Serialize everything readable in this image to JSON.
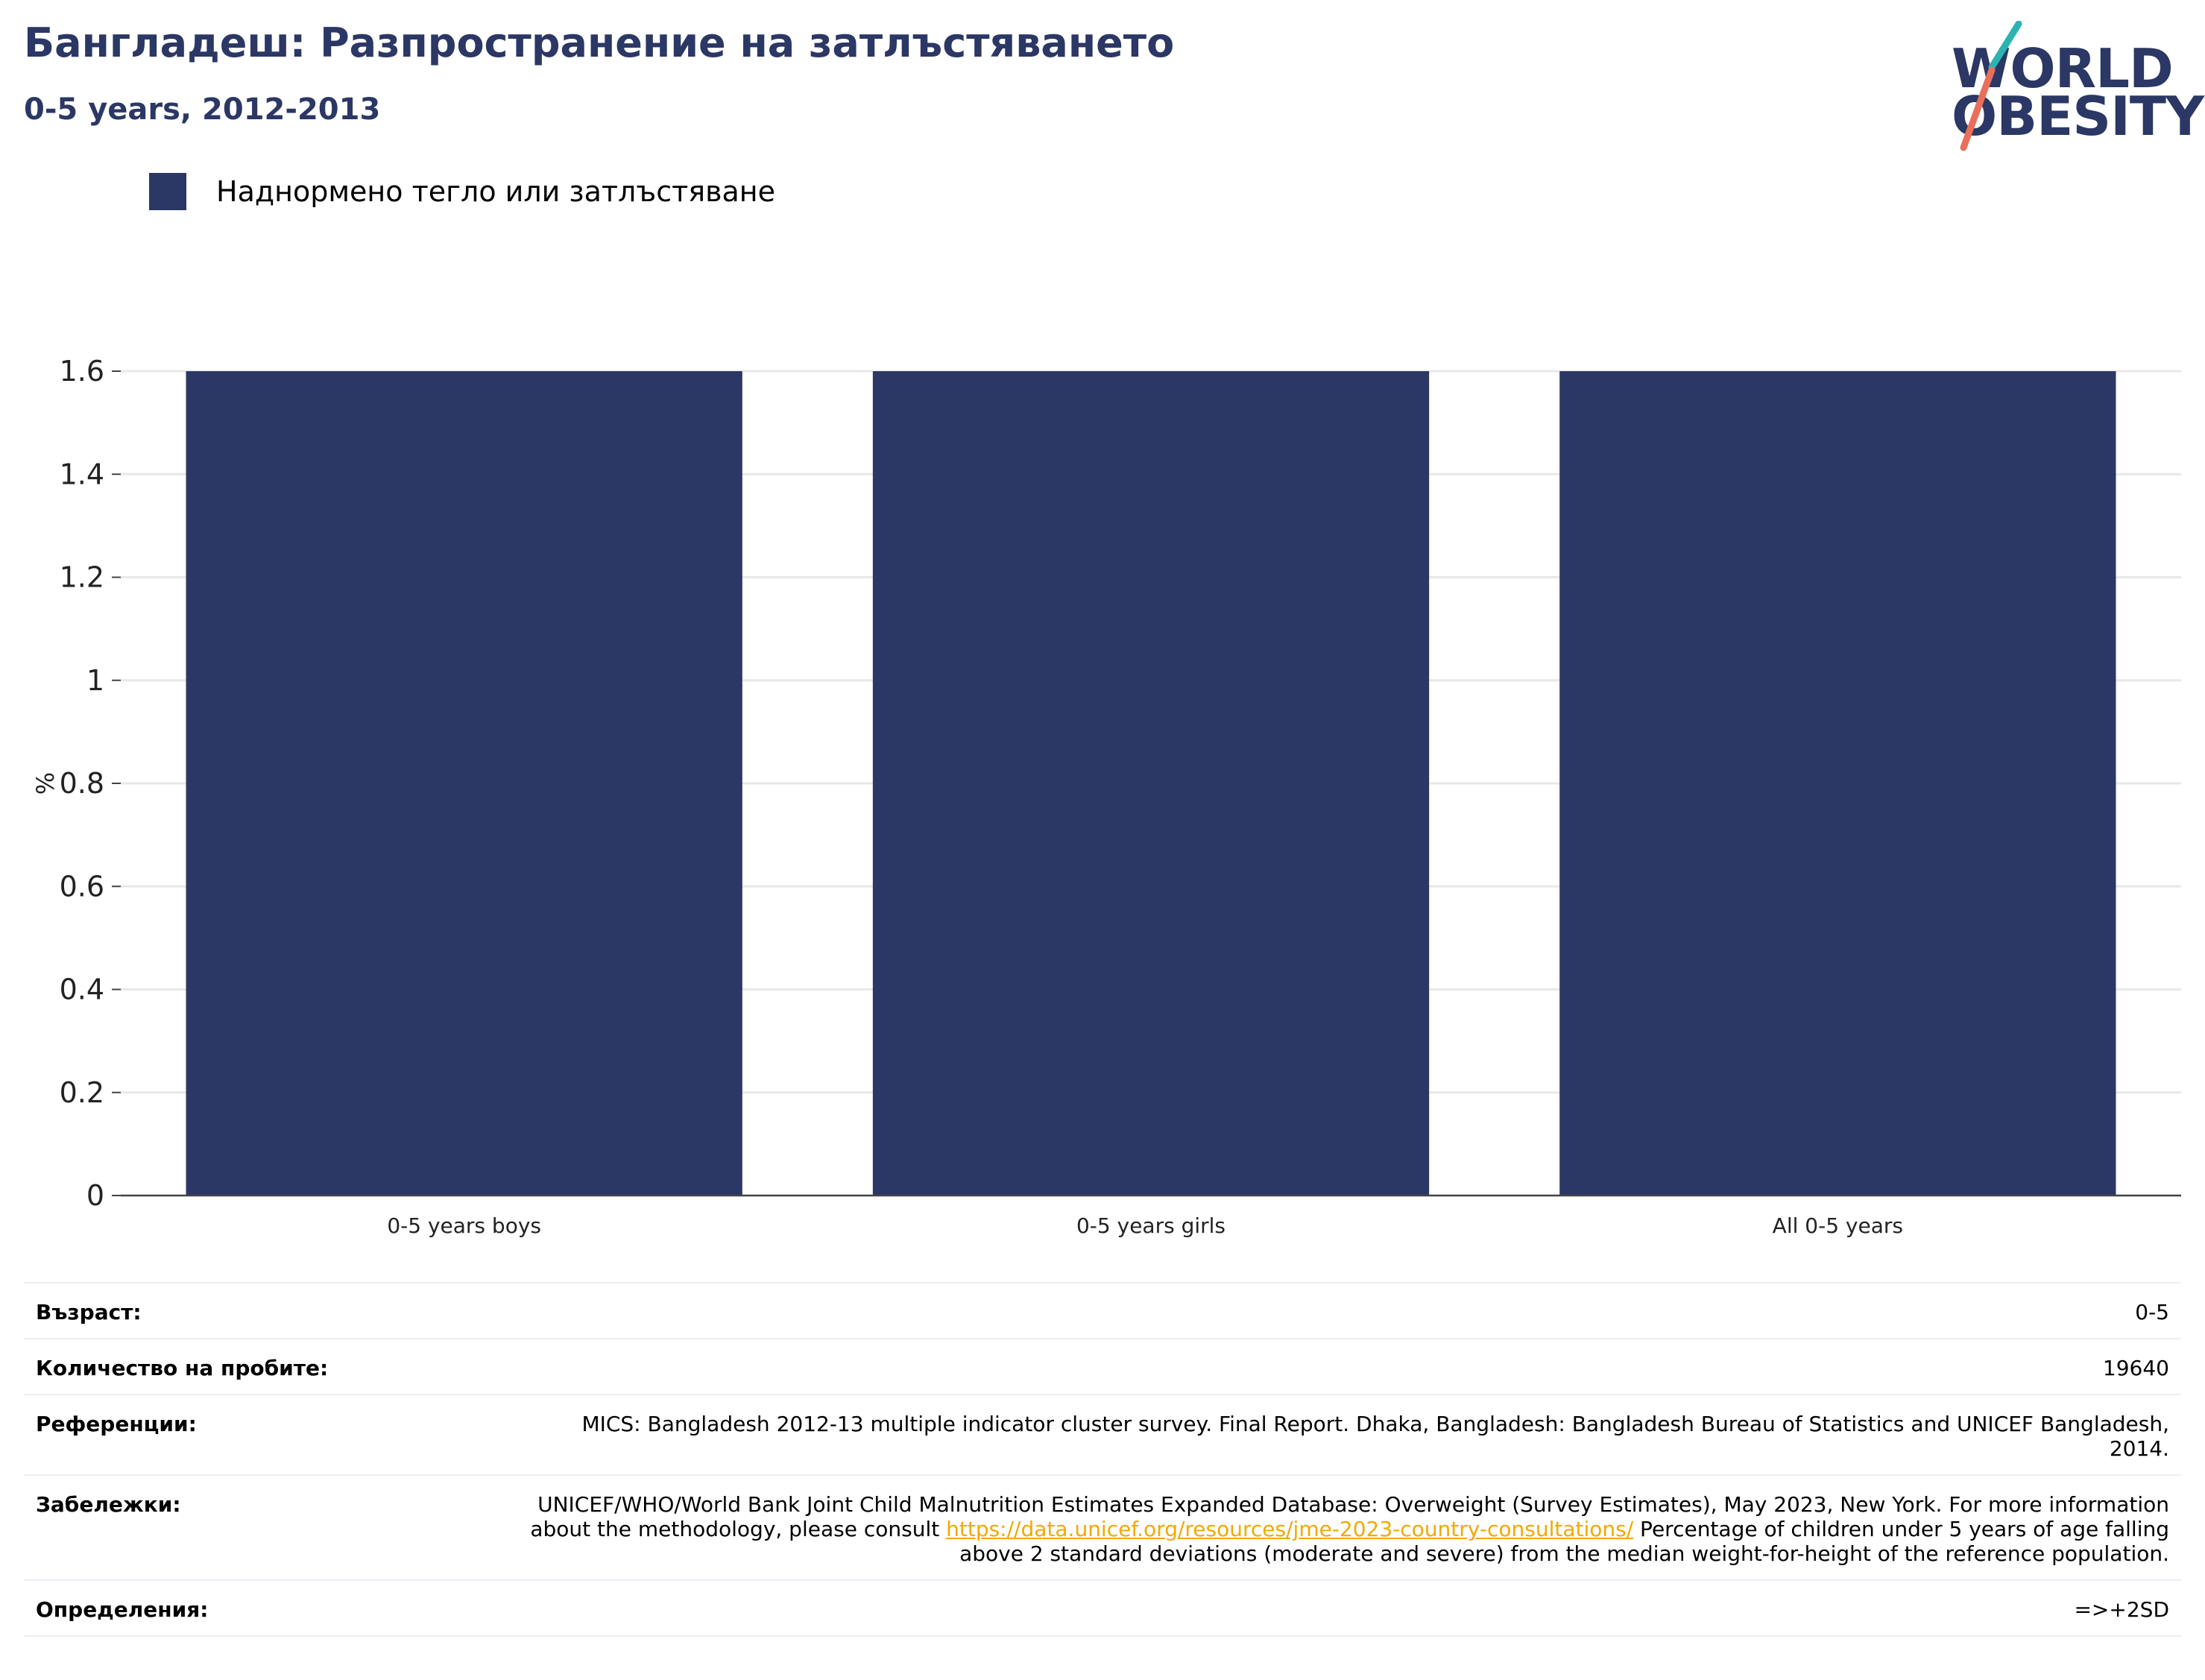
{
  "header": {
    "title": "Бангладеш: Разпространение на затлъстяването",
    "subtitle": "0-5 years, 2012-2013"
  },
  "logo": {
    "line1": "WORLD",
    "line2": "OBESITY",
    "colors": {
      "text": "#2b3764",
      "slash_top": "#2bb3b1",
      "slash_bottom": "#e8705a"
    }
  },
  "legend": {
    "items": [
      {
        "label": "Наднормено тегло или затлъстяване",
        "color": "#2b3764"
      }
    ]
  },
  "chart_data": {
    "type": "bar",
    "categories": [
      "0-5 years boys",
      "0-5 years girls",
      "All 0-5 years"
    ],
    "series": [
      {
        "name": "Наднормено тегло или затлъстяване",
        "values": [
          1.6,
          1.6,
          1.6
        ],
        "color": "#2b3764"
      }
    ],
    "ylabel": "%",
    "xlabel": "",
    "ylim": [
      0,
      1.6
    ],
    "yticks": [
      0,
      0.2,
      0.4,
      0.6,
      0.8,
      1,
      1.2,
      1.4,
      1.6
    ],
    "ytick_labels": [
      "0",
      "0.2",
      "0.4",
      "0.6",
      "0.8",
      "1",
      "1.2",
      "1.4",
      "1.6"
    ],
    "grid": true,
    "legend_position": "top-left"
  },
  "info": {
    "age": {
      "label": "Възраст:",
      "value": "0-5"
    },
    "sample_size": {
      "label": "Количество на пробите:",
      "value": "19640"
    },
    "references": {
      "label": "Референции:",
      "value": "MICS: Bangladesh 2012-13 multiple indicator cluster survey. Final Report. Dhaka, Bangladesh: Bangladesh Bureau of Statistics and UNICEF Bangladesh, 2014."
    },
    "notes": {
      "label": "Забележки:",
      "value_before": "UNICEF/WHO/World Bank Joint Child Malnutrition Estimates Expanded Database: Overweight (Survey Estimates), May 2023, New York. For more information about the methodology, please consult ",
      "link": "https://data.unicef.org/resources/jme-2023-country-consultations/",
      "value_after": " Percentage of children under 5 years of age falling above 2 standard deviations (moderate and severe) from the median weight-for-height of the reference population."
    },
    "definitions": {
      "label": "Определения:",
      "value": "=>+2SD"
    }
  }
}
